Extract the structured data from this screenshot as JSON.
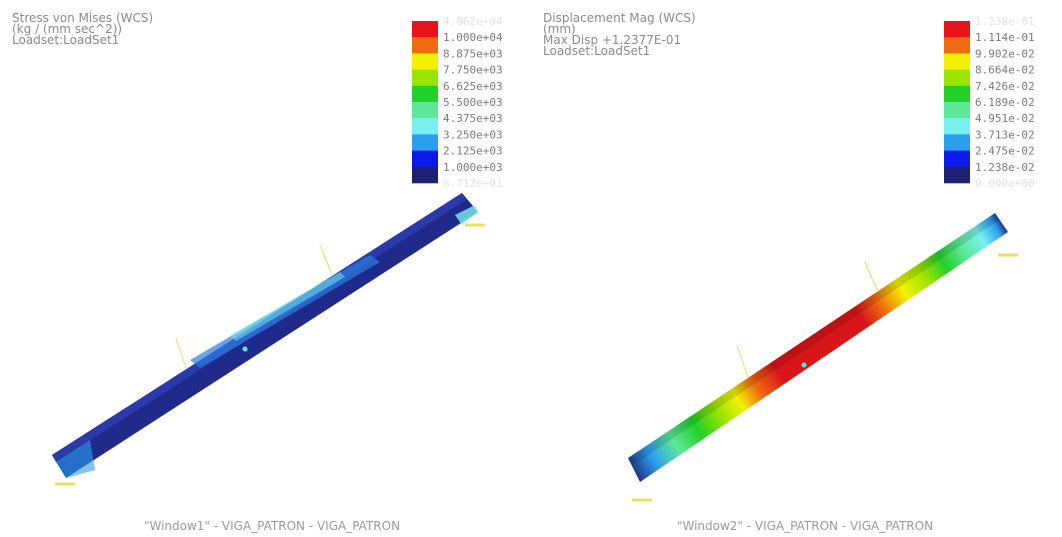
{
  "legend_colors": [
    "#e8141c",
    "#f06a10",
    "#f2f200",
    "#9be400",
    "#22d02a",
    "#5ce897",
    "#7af0ee",
    "#2c9ef0",
    "#0a1ae8",
    "#1f2272"
  ],
  "panels": [
    {
      "header": [
        "Stress von Mises (WCS)",
        "(kg / (mm sec^2))",
        "Loadset:LoadSet1"
      ],
      "legend_labels": [
        "4.862e+04",
        "1.000e+04",
        "8.875e+03",
        "7.750e+03",
        "6.625e+03",
        "5.500e+03",
        "4.375e+03",
        "3.250e+03",
        "2.125e+03",
        "1.000e+03",
        "6.712e+01"
      ],
      "footer": "\"Window1\" - VIGA_PATRON - VIGA_PATRON"
    },
    {
      "header": [
        "Displacement Mag (WCS)",
        "(mm)",
        "Max Disp    +1.2377E-01",
        "Loadset:LoadSet1"
      ],
      "legend_labels": [
        "1.238e-01",
        "1.114e-01",
        "9.902e-02",
        "8.664e-02",
        "7.426e-02",
        "6.189e-02",
        "4.951e-02",
        "3.713e-02",
        "2.475e-02",
        "1.238e-02",
        "0.000e+00"
      ],
      "footer": "\"Window2\" - VIGA_PATRON - VIGA_PATRON"
    }
  ]
}
